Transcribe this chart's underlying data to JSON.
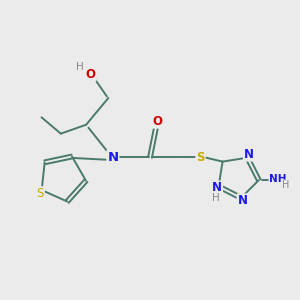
{
  "bg_color": "#ebebeb",
  "bond_color": "#4a7a6a",
  "atom_colors": {
    "N": "#1a1aee",
    "O": "#cc0000",
    "S": "#ccaa00",
    "H": "#888888",
    "C": "#4a7a6a"
  },
  "figsize": [
    3.0,
    3.0
  ],
  "dpi": 100
}
